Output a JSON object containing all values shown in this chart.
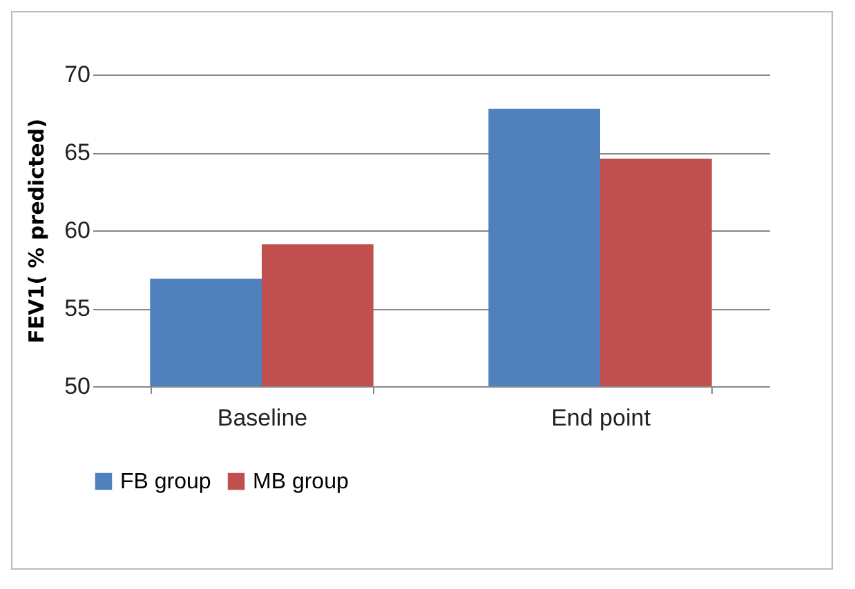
{
  "chart_data": {
    "type": "bar",
    "ylabel": "FEV1( % predicted)",
    "categories": [
      "Baseline",
      "End point"
    ],
    "series": [
      {
        "name": "FB group",
        "color": "#4f81bd",
        "values": [
          56.9,
          67.8
        ]
      },
      {
        "name": "MB group",
        "color": "#c0504d",
        "values": [
          59.1,
          64.6
        ]
      }
    ],
    "ylim": [
      50,
      70
    ],
    "yticks": [
      50,
      55,
      60,
      65,
      70
    ],
    "grid": "y",
    "legend": "bottom"
  }
}
